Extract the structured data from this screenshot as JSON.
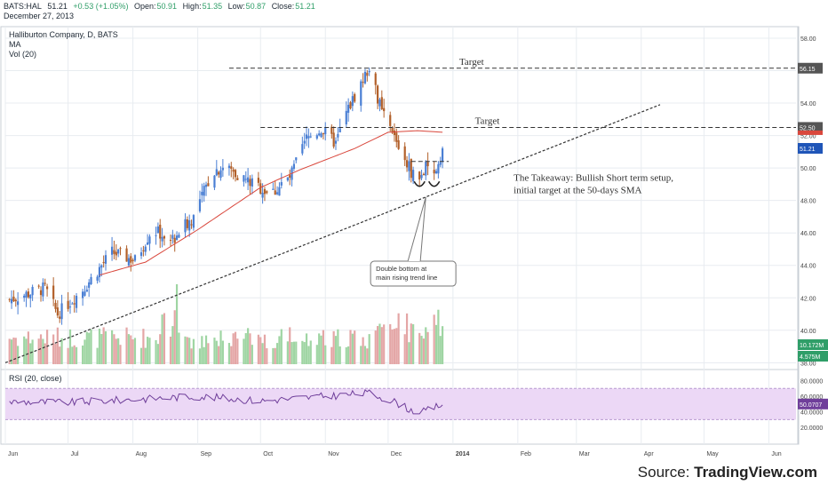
{
  "header": {
    "symbol": "BATS:HAL",
    "last": "51.21",
    "change": "+0.53 (+1.05%)",
    "open_label": "Open:",
    "open": "50.91",
    "high_label": "High:",
    "high": "51.35",
    "low_label": "Low:",
    "low": "50.87",
    "close_label": "Close:",
    "close": "51.21",
    "date": "December 27, 2013"
  },
  "legend": {
    "title": "Halliburton Company, D, BATS",
    "ma": "MA",
    "vol": "Vol (20)",
    "rsi": "RSI (20, close)"
  },
  "source": {
    "prefix": "Source:",
    "brand": "TradingView.com"
  },
  "colors": {
    "up": "#4a7fd4",
    "down": "#b2602a",
    "ma": "#d9473c",
    "trend": "#333333",
    "grid": "#e8ecf0",
    "vol_up": "#9fd5a3",
    "vol_down": "#e4a6a6",
    "rsi_line": "#6f3e9a",
    "rsi_band": "#ecd8f6"
  },
  "chart_data": {
    "type": "candlestick",
    "price_axis": {
      "ticks": [
        "58.00",
        "56.00",
        "54.00",
        "52.00",
        "50.00",
        "48.00",
        "46.00",
        "44.00",
        "42.00",
        "40.00",
        "38.00"
      ],
      "ylim": [
        37.8,
        58.6
      ]
    },
    "x_axis": {
      "ticks": [
        "Jun",
        "Jul",
        "Aug",
        "Sep",
        "Oct",
        "Nov",
        "Dec",
        "2014",
        "Feb",
        "Mar",
        "Apr",
        "May",
        "Jun"
      ],
      "start": "2013-06-01",
      "end": "2014-06-14"
    },
    "price_anchors": [
      {
        "date": "2013-06-01",
        "price": 41.8
      },
      {
        "date": "2013-06-20",
        "price": 42.6
      },
      {
        "date": "2013-06-26",
        "price": 41.0
      },
      {
        "date": "2013-07-08",
        "price": 42.5
      },
      {
        "date": "2013-07-22",
        "price": 44.8
      },
      {
        "date": "2013-08-02",
        "price": 44.3
      },
      {
        "date": "2013-08-10",
        "price": 46.2
      },
      {
        "date": "2013-08-20",
        "price": 45.6
      },
      {
        "date": "2013-08-30",
        "price": 47.0
      },
      {
        "date": "2013-09-08",
        "price": 49.8
      },
      {
        "date": "2013-09-14",
        "price": 50.1
      },
      {
        "date": "2013-09-25",
        "price": 49.2
      },
      {
        "date": "2013-10-06",
        "price": 48.4
      },
      {
        "date": "2013-10-15",
        "price": 49.4
      },
      {
        "date": "2013-10-23",
        "price": 51.8
      },
      {
        "date": "2013-10-30",
        "price": 52.4
      },
      {
        "date": "2013-11-06",
        "price": 51.5
      },
      {
        "date": "2013-11-11",
        "price": 53.4
      },
      {
        "date": "2013-11-18",
        "price": 55.2
      },
      {
        "date": "2013-11-22",
        "price": 56.2
      },
      {
        "date": "2013-11-28",
        "price": 53.4
      },
      {
        "date": "2013-12-05",
        "price": 51.6
      },
      {
        "date": "2013-12-12",
        "price": 49.8
      },
      {
        "date": "2013-12-16",
        "price": 49.3
      },
      {
        "date": "2013-12-19",
        "price": 50.0
      },
      {
        "date": "2013-12-22",
        "price": 49.1
      },
      {
        "date": "2013-12-27",
        "price": 51.2
      }
    ],
    "ma_anchors": [
      {
        "date": "2013-07-16",
        "price": 43.4
      },
      {
        "date": "2013-08-07",
        "price": 44.2
      },
      {
        "date": "2013-09-01",
        "price": 46.2
      },
      {
        "date": "2013-10-01",
        "price": 48.8
      },
      {
        "date": "2013-10-20",
        "price": 49.9
      },
      {
        "date": "2013-11-15",
        "price": 51.2
      },
      {
        "date": "2013-12-01",
        "price": 52.2
      },
      {
        "date": "2013-12-15",
        "price": 52.3
      },
      {
        "date": "2013-12-27",
        "price": 52.2
      }
    ],
    "last_price": 51.21,
    "horizontal_lines": [
      {
        "price": 56.15,
        "label": "Target",
        "axis_label": "56.15",
        "from": "2013-09-16",
        "to": "2014-06-14"
      },
      {
        "price": 52.5,
        "label": "Target",
        "axis_label": "52.50",
        "from": "2013-10-01",
        "to": "2014-06-14"
      },
      {
        "price": 50.4,
        "label": "",
        "axis_label": "",
        "from": "2013-12-12",
        "to": "2013-12-30"
      }
    ],
    "trend_line": {
      "from": {
        "date": "2013-06-01",
        "price": 38.0
      },
      "to": {
        "date": "2014-04-10",
        "price": 53.9
      }
    },
    "annotations": [
      {
        "text": "The Takeaway: Bullish Short term setup,",
        "line2": "initial target at the 50-days SMA",
        "date": "2014-01-30",
        "price": 49.2
      },
      {
        "text": "Double bottom at",
        "line2": "main rising trend line",
        "date": "2013-12-13",
        "price": 43.6,
        "callout_to": {
          "date": "2013-12-19",
          "price": 48.2
        }
      }
    ],
    "volume": {
      "axis_labels": [
        {
          "value": "10.172M",
          "color": "#2f9e68"
        },
        {
          "value": "4.575M",
          "color": "#2f9e68"
        }
      ],
      "spike": {
        "date": "2013-08-22",
        "value": 10.2
      }
    },
    "rsi": {
      "ticks": [
        "80.0000",
        "60.0000",
        "40.0000",
        "20.0000"
      ],
      "levels": [
        70,
        30
      ],
      "last": "50.0707",
      "anchors": [
        {
          "date": "2013-06-01",
          "value": 53
        },
        {
          "date": "2013-07-01",
          "value": 52
        },
        {
          "date": "2013-08-01",
          "value": 56
        },
        {
          "date": "2013-09-01",
          "value": 60
        },
        {
          "date": "2013-10-01",
          "value": 54
        },
        {
          "date": "2013-11-01",
          "value": 60
        },
        {
          "date": "2013-11-22",
          "value": 64
        },
        {
          "date": "2013-12-05",
          "value": 52
        },
        {
          "date": "2013-12-12",
          "value": 42
        },
        {
          "date": "2013-12-18",
          "value": 40
        },
        {
          "date": "2013-12-27",
          "value": 50
        }
      ]
    }
  }
}
